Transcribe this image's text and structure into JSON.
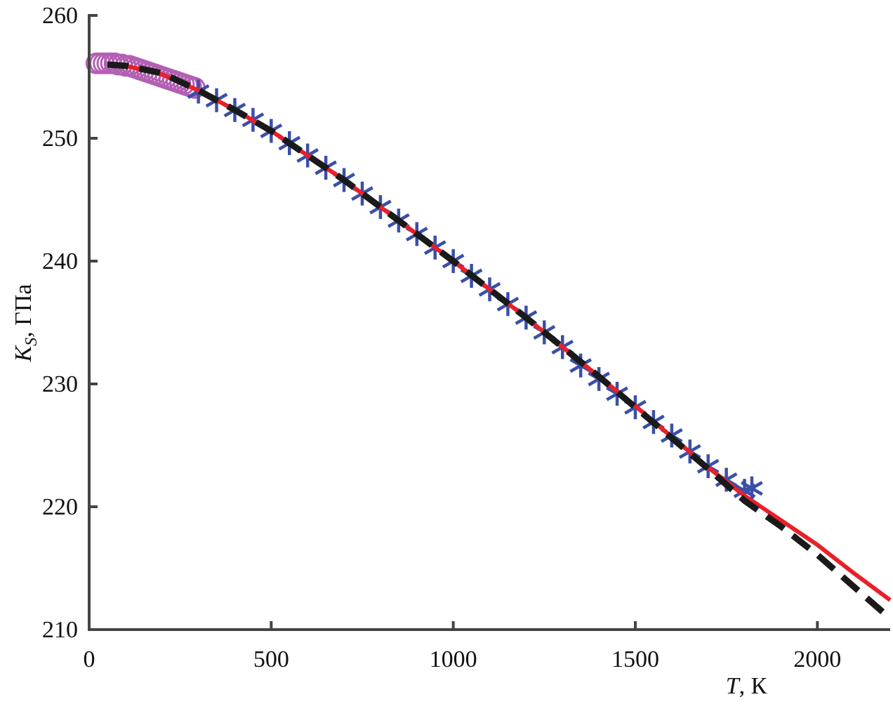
{
  "chart_data": {
    "type": "line",
    "xlabel": {
      "symbol": "T",
      "unit": ", К"
    },
    "ylabel": {
      "symbol": "K",
      "subscript": "S",
      "unit": ", ГПа"
    },
    "xlim": [
      0,
      2200
    ],
    "xticks": [
      0,
      500,
      1000,
      1500,
      2000
    ],
    "ylim": [
      210,
      260
    ],
    "yticks": [
      210,
      220,
      230,
      240,
      250,
      260
    ],
    "series": [
      {
        "marker": "circle",
        "color": "#b35fb3",
        "x": [
          20,
          30,
          40,
          50,
          60,
          70,
          80,
          90,
          100,
          110,
          120,
          130,
          140,
          150,
          160,
          170,
          180,
          190,
          200,
          210,
          220,
          230,
          240,
          250,
          260,
          270,
          280,
          290
        ],
        "values": [
          256.1,
          256.1,
          256.1,
          256.1,
          256.1,
          256.1,
          256.0,
          256.0,
          255.9,
          255.9,
          255.8,
          255.7,
          255.6,
          255.5,
          255.4,
          255.3,
          255.2,
          255.1,
          255.0,
          254.9,
          254.8,
          254.7,
          254.6,
          254.5,
          254.4,
          254.3,
          254.2,
          254.1
        ]
      },
      {
        "marker": "asterisk",
        "color": "#3a4fa8",
        "x": [
          300,
          350,
          400,
          450,
          500,
          550,
          600,
          650,
          700,
          750,
          800,
          850,
          900,
          950,
          1000,
          1050,
          1100,
          1150,
          1200,
          1250,
          1300,
          1350,
          1400,
          1450,
          1500,
          1550,
          1600,
          1650,
          1700,
          1750,
          1800,
          1820
        ],
        "values": [
          253.8,
          253.1,
          252.3,
          251.5,
          250.6,
          249.6,
          248.6,
          247.6,
          246.6,
          245.5,
          244.4,
          243.3,
          242.2,
          241.1,
          240.0,
          238.8,
          237.7,
          236.5,
          235.4,
          234.2,
          233.0,
          231.5,
          230.4,
          229.2,
          228.1,
          226.9,
          225.8,
          224.5,
          223.3,
          222.2,
          221.3,
          221.5
        ]
      },
      {
        "line": "solid",
        "color": "#e8202a",
        "x": [
          50,
          100,
          200,
          300,
          400,
          500,
          600,
          700,
          800,
          900,
          1000,
          1100,
          1200,
          1300,
          1400,
          1500,
          1600,
          1700,
          1800,
          1900,
          2000,
          2100,
          2200
        ],
        "values": [
          256.0,
          255.9,
          255.2,
          253.9,
          252.3,
          250.6,
          248.6,
          246.6,
          244.4,
          242.2,
          240.0,
          237.7,
          235.4,
          233.0,
          230.6,
          228.2,
          225.7,
          223.2,
          220.9,
          218.9,
          216.9,
          214.6,
          212.4
        ]
      },
      {
        "line": "dashed",
        "color": "#1a1a1a",
        "x": [
          50,
          100,
          200,
          300,
          400,
          500,
          600,
          700,
          800,
          900,
          1000,
          1100,
          1200,
          1300,
          1400,
          1500,
          1600,
          1700,
          1800,
          1900,
          2000,
          2100,
          2200
        ],
        "values": [
          256.0,
          255.9,
          255.3,
          253.9,
          252.3,
          250.6,
          248.6,
          246.6,
          244.4,
          242.2,
          240.0,
          237.7,
          235.4,
          233.0,
          230.6,
          228.1,
          225.6,
          223.1,
          220.5,
          218.4,
          216.1,
          213.5,
          210.9
        ]
      }
    ]
  }
}
